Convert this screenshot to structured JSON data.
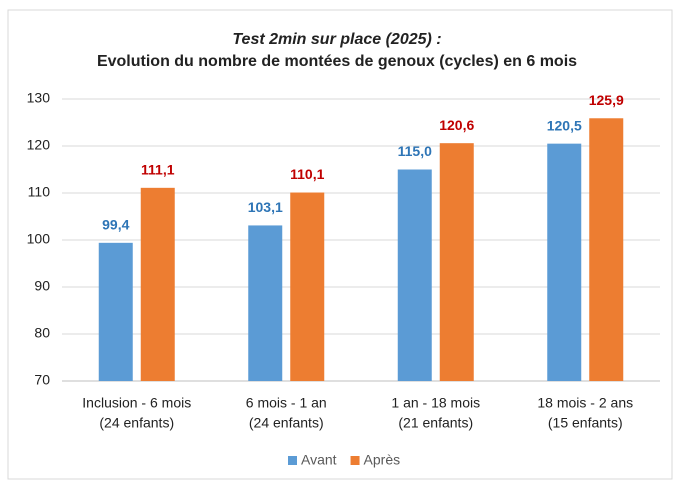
{
  "chart_data": {
    "type": "bar",
    "title": "Test 2min sur place (2025) :",
    "subtitle": "Evolution du nombre de montées de genoux (cycles) en 6 mois",
    "categories": [
      [
        "Inclusion - 6 mois",
        "(24 enfants)"
      ],
      [
        "6 mois - 1 an",
        "(24 enfants)"
      ],
      [
        "1 an - 18 mois",
        "(21 enfants)"
      ],
      [
        "18 mois - 2 ans",
        "(15 enfants)"
      ]
    ],
    "series": [
      {
        "name": "Avant",
        "color": "#5b9bd5",
        "label_color": "#2e75b6",
        "values": [
          99.4,
          103.1,
          115.0,
          120.5
        ],
        "value_labels": [
          "99,4",
          "103,1",
          "115,0",
          "120,5"
        ]
      },
      {
        "name": "Après",
        "color": "#ed7d31",
        "label_color": "#c00000",
        "values": [
          111.1,
          110.1,
          120.6,
          125.9
        ],
        "value_labels": [
          "111,1",
          "110,1",
          "120,6",
          "125,9"
        ]
      }
    ],
    "ylim": [
      70,
      130
    ],
    "yticks": [
      70,
      80,
      90,
      100,
      110,
      120,
      130
    ],
    "grid": true,
    "legend": "bottom"
  }
}
